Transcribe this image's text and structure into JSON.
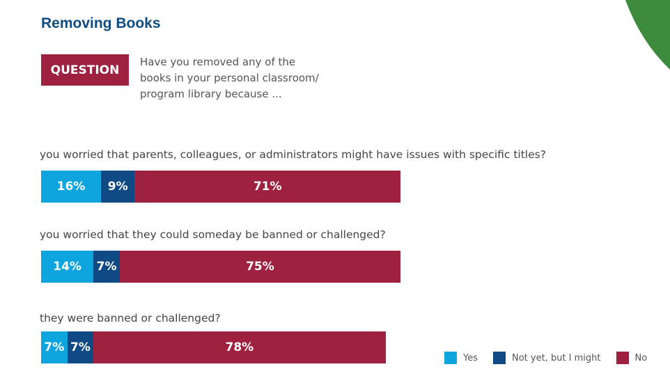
{
  "title": "Removing Books",
  "question_badge": "QUESTION",
  "question_text": "Have you removed any of the books in your personal classroom/ program library because ...",
  "colors": {
    "yes": "#0ea5de",
    "not_yet": "#0f4a84",
    "no": "#9e2140",
    "accent": "#3d8b3d"
  },
  "chart_data": {
    "type": "bar",
    "orientation": "horizontal-stacked",
    "categories": [
      "you worried that parents, colleagues, or administrators might have issues with specific titles?",
      "you worried that they could someday be banned or challenged?",
      "they were banned or challenged?"
    ],
    "series": [
      {
        "name": "Yes",
        "values": [
          16,
          14,
          7
        ],
        "labels": [
          "16%",
          "14%",
          "7%"
        ]
      },
      {
        "name": "Not yet, but I might",
        "values": [
          9,
          7,
          7
        ],
        "labels": [
          "9%",
          "7%",
          "7%"
        ]
      },
      {
        "name": "No",
        "values": [
          71,
          75,
          78
        ],
        "labels": [
          "71%",
          "75%",
          "78%"
        ]
      }
    ],
    "legend_position": "bottom-right",
    "xlim": [
      0,
      100
    ]
  }
}
